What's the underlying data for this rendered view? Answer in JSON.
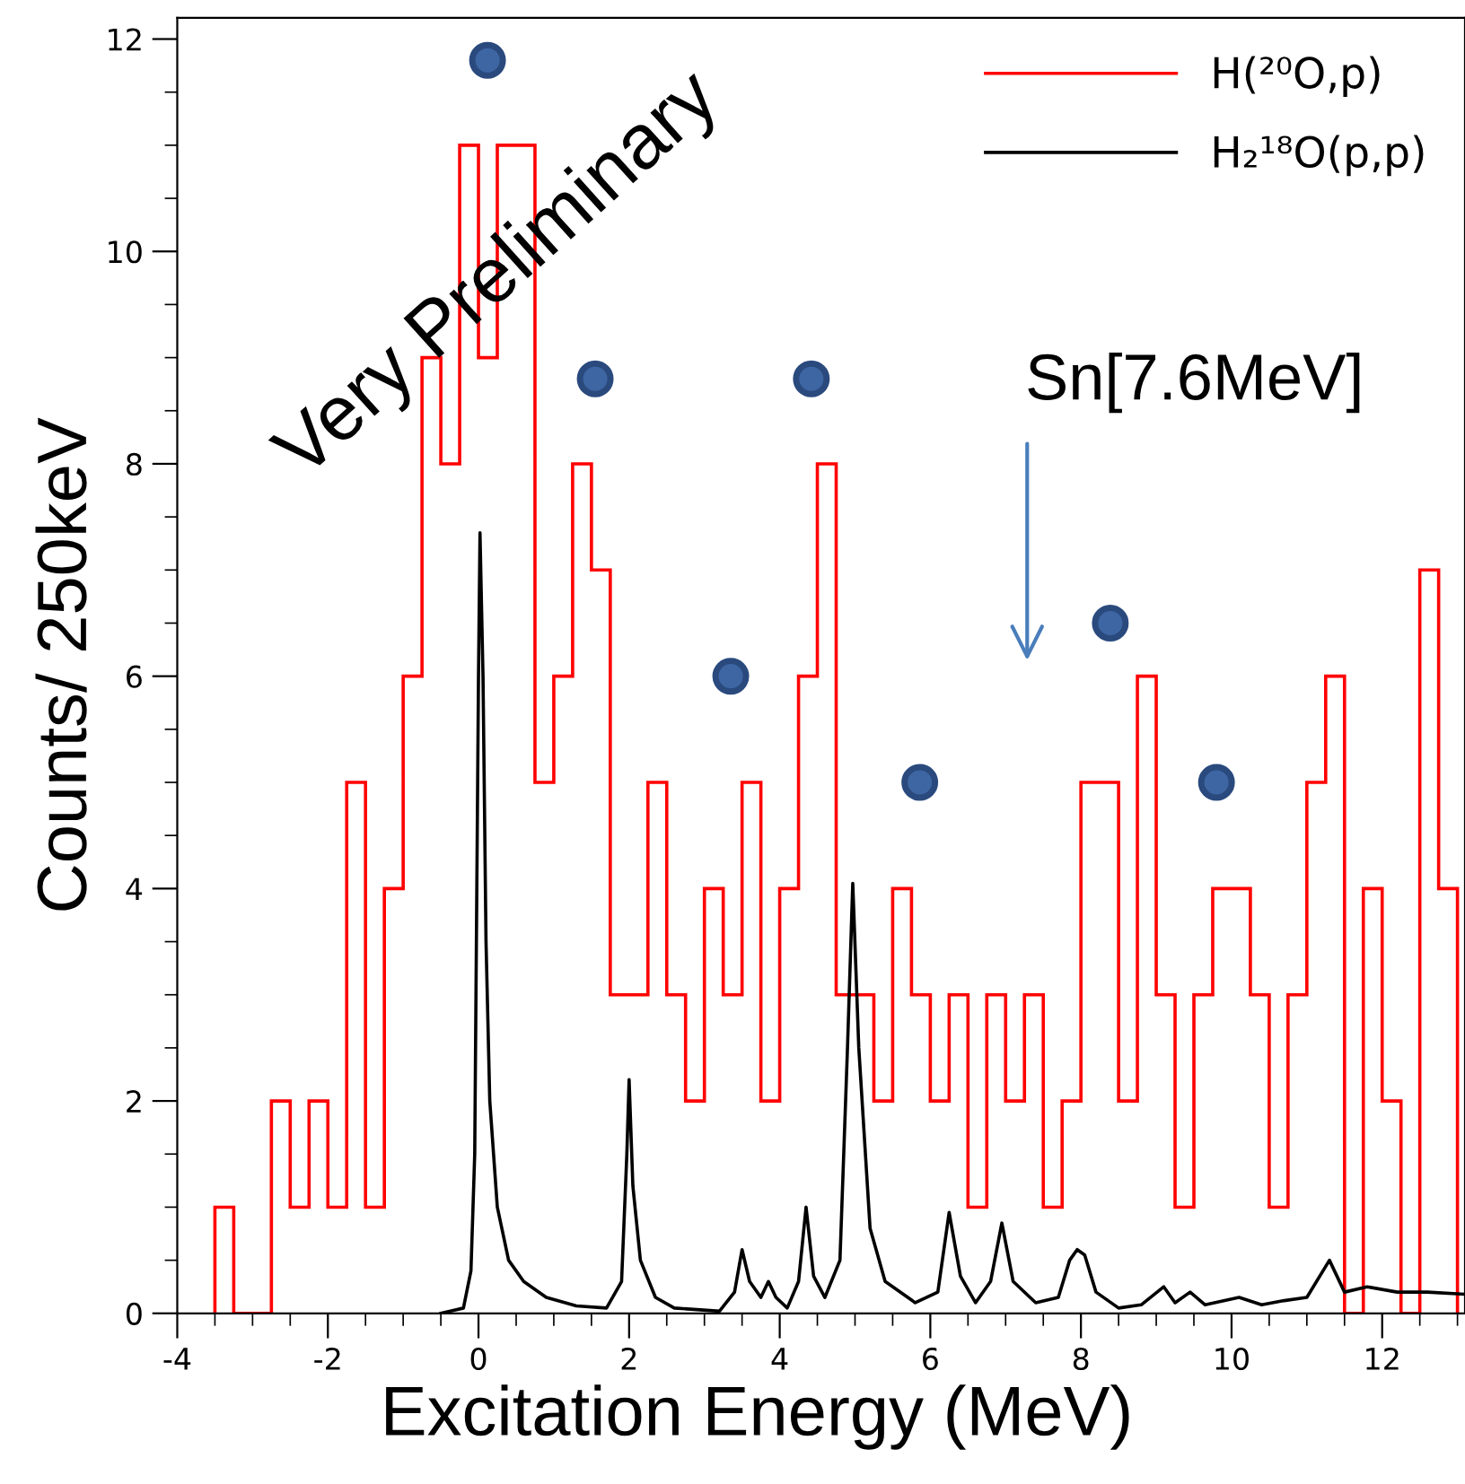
{
  "chart_data": {
    "type": "histogram",
    "xlabel": "Excitation Energy (MeV)",
    "ylabel": "Counts/ 250keV",
    "xlim": [
      -4,
      13.1
    ],
    "ylim": [
      0,
      12.2
    ],
    "xticks": [
      -4,
      -2,
      0,
      2,
      4,
      6,
      8,
      10,
      12
    ],
    "yticks": [
      0,
      2,
      4,
      6,
      8,
      10,
      12
    ],
    "grid": false,
    "legend": "top right",
    "series": [
      {
        "name": "H(²⁰O,p)",
        "color": "#ff0000",
        "bins": [
          -3.5,
          -3.25,
          -3.0,
          -2.75,
          -2.5,
          -2.25,
          -2.0,
          -1.75,
          -1.5,
          -1.25,
          -1.0,
          -0.75,
          -0.5,
          -0.25,
          0,
          0.25,
          0.5,
          0.75,
          1.0,
          1.25,
          1.5,
          1.75,
          2.0,
          2.25,
          2.5,
          2.75,
          3.0,
          3.25,
          3.5,
          3.75,
          4.0,
          4.25,
          4.5,
          4.75,
          5.0,
          5.25,
          5.5,
          5.75,
          6.0,
          6.25,
          6.5,
          6.75,
          7.0,
          7.25,
          7.5,
          7.75,
          8.0,
          8.25,
          8.5,
          8.75,
          9.0,
          9.25,
          9.5,
          9.75,
          10.0,
          10.25,
          10.5,
          10.75,
          11.0,
          11.25,
          11.5,
          11.75,
          12.0,
          12.25,
          12.5,
          12.75,
          13.0
        ],
        "values": [
          1,
          0,
          0,
          2,
          1,
          2,
          1,
          5,
          1,
          4,
          6,
          9,
          8,
          11,
          9,
          11,
          11,
          5,
          6,
          8,
          7,
          3,
          3,
          5,
          3,
          2,
          4,
          3,
          5,
          2,
          4,
          6,
          8,
          3,
          3,
          2,
          4,
          3,
          2,
          3,
          1,
          3,
          2,
          3,
          1,
          2,
          5,
          5,
          2,
          6,
          3,
          1,
          3,
          4,
          4,
          3,
          1,
          3,
          5,
          6,
          0,
          4,
          2,
          0,
          7,
          4
        ]
      },
      {
        "type": "line",
        "name": "H₂¹⁸O(p,p)",
        "color": "#000000",
        "x": [
          -0.5,
          -0.2,
          -0.1,
          -0.05,
          0,
          0.02,
          0.06,
          0.1,
          0.15,
          0.25,
          0.4,
          0.6,
          0.9,
          1.3,
          1.7,
          1.9,
          1.97,
          2.0,
          2.05,
          2.15,
          2.35,
          2.6,
          3.2,
          3.4,
          3.5,
          3.6,
          3.75,
          3.85,
          3.95,
          4.1,
          4.25,
          4.35,
          4.45,
          4.6,
          4.8,
          4.9,
          4.97,
          5.05,
          5.2,
          5.4,
          5.8,
          6.1,
          6.25,
          6.4,
          6.6,
          6.8,
          6.95,
          7.1,
          7.4,
          7.7,
          7.85,
          7.95,
          8.05,
          8.2,
          8.5,
          8.8,
          9.1,
          9.25,
          9.45,
          9.65,
          10.1,
          10.4,
          10.7,
          11.0,
          11.3,
          11.5,
          11.8,
          12.2,
          12.6,
          13.1
        ],
        "values": [
          0,
          0.05,
          0.4,
          1.5,
          6.0,
          7.35,
          6.0,
          3.5,
          2.0,
          1.0,
          0.5,
          0.3,
          0.15,
          0.07,
          0.05,
          0.3,
          1.5,
          2.2,
          1.2,
          0.5,
          0.15,
          0.05,
          0.02,
          0.2,
          0.6,
          0.3,
          0.15,
          0.3,
          0.15,
          0.05,
          0.3,
          1.0,
          0.35,
          0.15,
          0.5,
          2.5,
          4.05,
          2.5,
          0.8,
          0.3,
          0.1,
          0.2,
          0.95,
          0.35,
          0.1,
          0.3,
          0.85,
          0.3,
          0.1,
          0.15,
          0.5,
          0.6,
          0.55,
          0.2,
          0.05,
          0.08,
          0.25,
          0.1,
          0.2,
          0.08,
          0.15,
          0.08,
          0.12,
          0.15,
          0.5,
          0.2,
          0.25,
          0.2,
          0.2,
          0.18
        ]
      },
      {
        "type": "scatter",
        "color": "#3d66a3",
        "marker": "circle",
        "x": [
          0.12,
          1.55,
          3.35,
          4.42,
          5.86,
          8.39,
          9.8
        ],
        "values": [
          11.8,
          8.8,
          6.0,
          8.8,
          5.0,
          6.5,
          5.0
        ]
      }
    ],
    "annotations": [
      "Sn[7.6MeV]",
      "Very Preliminary"
    ]
  }
}
